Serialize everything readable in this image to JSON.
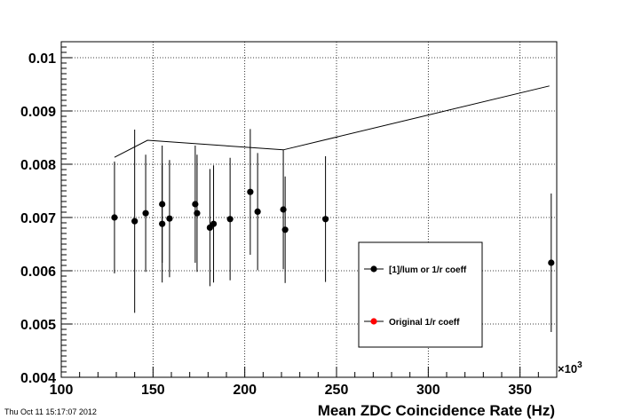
{
  "timestamp": "Thu Oct 11 15:17:07 2012",
  "chart_data": {
    "type": "scatter",
    "title": "",
    "xlabel": "Mean ZDC Coincidence Rate (Hz)",
    "ylabel": "",
    "x_multiplier_label": "×10",
    "x_multiplier_exp": "3",
    "xlim": [
      100,
      370
    ],
    "ylim": [
      0.004,
      0.0103
    ],
    "grid": true,
    "x_ticks": [
      100,
      150,
      200,
      250,
      300,
      350
    ],
    "x_tick_labels": [
      "100",
      "150",
      "200",
      "250",
      "300",
      "350"
    ],
    "y_ticks": [
      0.004,
      0.005,
      0.006,
      0.007,
      0.008,
      0.009,
      0.01
    ],
    "y_tick_labels": [
      "0.004",
      "0.005",
      "0.006",
      "0.007",
      "0.008",
      "0.009",
      "0.01"
    ],
    "legend_position": "bottom-right",
    "series": [
      {
        "name": "[1]/lum or 1/r coeff",
        "kind": "points-with-errors",
        "color": "#000000",
        "points": [
          {
            "x": 129,
            "y": 0.007,
            "yerr": 0.00105
          },
          {
            "x": 140,
            "y": 0.00693,
            "yerr": 0.00172
          },
          {
            "x": 146,
            "y": 0.00708,
            "yerr": 0.0011
          },
          {
            "x": 155,
            "y": 0.00725,
            "yerr": 0.0011
          },
          {
            "x": 155,
            "y": 0.00688,
            "yerr": 0.0011
          },
          {
            "x": 159,
            "y": 0.00698,
            "yerr": 0.0011
          },
          {
            "x": 173,
            "y": 0.00725,
            "yerr": 0.0011
          },
          {
            "x": 174,
            "y": 0.00708,
            "yerr": 0.0011
          },
          {
            "x": 181,
            "y": 0.00681,
            "yerr": 0.0011
          },
          {
            "x": 183,
            "y": 0.00688,
            "yerr": 0.0011
          },
          {
            "x": 192,
            "y": 0.00697,
            "yerr": 0.00115
          },
          {
            "x": 203,
            "y": 0.00748,
            "yerr": 0.00118
          },
          {
            "x": 207,
            "y": 0.00711,
            "yerr": 0.0011
          },
          {
            "x": 221,
            "y": 0.00715,
            "yerr": 0.00112
          },
          {
            "x": 222,
            "y": 0.00677,
            "yerr": 0.001
          },
          {
            "x": 244,
            "y": 0.00697,
            "yerr": 0.00118
          },
          {
            "x": 367,
            "y": 0.00615,
            "yerr": 0.0013
          }
        ]
      },
      {
        "name": "Original 1/r coeff",
        "kind": "line",
        "color": "#000000",
        "marker_color": "#ff0000",
        "points": [
          {
            "x": 129,
            "y": 0.00813
          },
          {
            "x": 147,
            "y": 0.00845
          },
          {
            "x": 221,
            "y": 0.00827
          },
          {
            "x": 366,
            "y": 0.00947
          }
        ]
      }
    ]
  }
}
